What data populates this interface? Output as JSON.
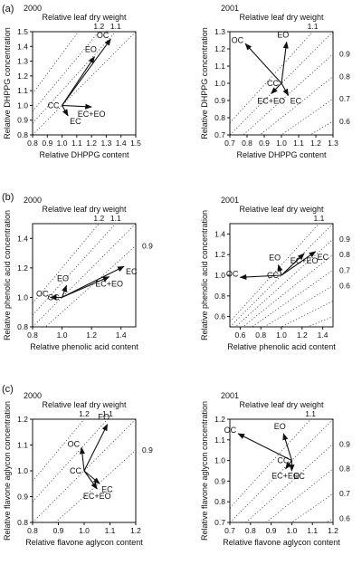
{
  "figure": {
    "type": "vector-diagram-grid",
    "row_labels": [
      "(a)",
      "(b)",
      "(c)"
    ]
  },
  "chart_data": [
    {
      "type": "vector",
      "panel_id": "a-2000",
      "year": "2000",
      "xlabel": "Relative DHPPG content",
      "ylabel": "Relative DHPPG concentration",
      "top_axis_label": "Relative leaf dry weight",
      "xlim": [
        0.8,
        1.5
      ],
      "ylim": [
        0.8,
        1.5
      ],
      "xticks": [
        "0.8",
        "0.9",
        "1.0",
        "1.1",
        "1.2",
        "1.3",
        "1.4",
        "1.5"
      ],
      "yticks": [
        "0.8",
        "0.9",
        "1.0",
        "1.1",
        "1.2",
        "1.3",
        "1.4",
        "1.5"
      ],
      "isolines": [
        {
          "label": "1.0",
          "k": 1.0
        },
        {
          "label": "1.1",
          "k": 1.1
        },
        {
          "label": "1.2",
          "k": 1.2
        },
        {
          "label": "",
          "k": 1.35
        }
      ],
      "origin_label": "CC",
      "origin": [
        1.0,
        1.0
      ],
      "vectors": [
        {
          "label": "OC",
          "x": 1.33,
          "y": 1.45
        },
        {
          "label": "EO",
          "x": 1.22,
          "y": 1.33
        },
        {
          "label": "EC+EO",
          "x": 1.2,
          "y": 0.99
        },
        {
          "label": "EC",
          "x": 1.04,
          "y": 0.93
        }
      ]
    },
    {
      "type": "vector",
      "panel_id": "a-2001",
      "year": "2001",
      "xlabel": "Relative DHPPG content",
      "ylabel": "Relative DHPPG concentration",
      "top_axis_label": "Relative leaf dry weight",
      "xlim": [
        0.7,
        1.3
      ],
      "ylim": [
        0.7,
        1.3
      ],
      "xticks": [
        "0.7",
        "0.8",
        "0.9",
        "1.0",
        "1.1",
        "1.2",
        "1.3"
      ],
      "yticks": [
        "0.7",
        "0.8",
        "0.9",
        "1.0",
        "1.1",
        "1.2",
        "1.3"
      ],
      "isolines": [
        {
          "label": "0.6",
          "k": 0.6
        },
        {
          "label": "0.7",
          "k": 0.7
        },
        {
          "label": "0.8",
          "k": 0.8
        },
        {
          "label": "0.9",
          "k": 0.9
        },
        {
          "label": "1.0",
          "k": 1.0
        },
        {
          "label": "1.1",
          "k": 1.1
        }
      ],
      "origin_label": "CC",
      "origin": [
        1.0,
        1.0
      ],
      "vectors": [
        {
          "label": "OC",
          "x": 0.79,
          "y": 1.23
        },
        {
          "label": "EO",
          "x": 1.03,
          "y": 1.24
        },
        {
          "label": "EC+EO",
          "x": 0.94,
          "y": 0.94
        },
        {
          "label": "EC",
          "x": 1.04,
          "y": 0.93
        }
      ]
    },
    {
      "type": "vector",
      "panel_id": "b-2000",
      "year": "2000",
      "xlabel": "Relative phenolic acid content",
      "ylabel": "Relative phenolic acid concentration",
      "top_axis_label": "Relative leaf dry weight",
      "xlim": [
        0.8,
        1.5
      ],
      "ylim": [
        0.8,
        1.5
      ],
      "xticks": [
        "0.8",
        "1.0",
        "1.2",
        "1.4"
      ],
      "yticks": [
        "0.8",
        "1.0",
        "1.2",
        "1.4"
      ],
      "isolines": [
        {
          "label": "0.9",
          "k": 0.9
        },
        {
          "label": "1.0",
          "k": 1.0
        },
        {
          "label": "1.1",
          "k": 1.1
        },
        {
          "label": "1.2",
          "k": 1.2
        }
      ],
      "origin_label": "CC",
      "origin": [
        1.0,
        1.0
      ],
      "vectors": [
        {
          "label": "OC",
          "x": 0.92,
          "y": 1.0
        },
        {
          "label": "EO",
          "x": 1.03,
          "y": 1.08
        },
        {
          "label": "EC",
          "x": 1.42,
          "y": 1.21
        },
        {
          "label": "EC+EO",
          "x": 1.32,
          "y": 1.14
        }
      ]
    },
    {
      "type": "vector",
      "panel_id": "b-2001",
      "year": "2001",
      "xlabel": "Relative phenolic acid content",
      "ylabel": "Relative phenolic acid concentration",
      "top_axis_label": "Relative leaf dry weight",
      "xlim": [
        0.5,
        1.5
      ],
      "ylim": [
        0.5,
        1.5
      ],
      "xticks": [
        "0.6",
        "0.8",
        "1.0",
        "1.2",
        "1.4"
      ],
      "yticks": [
        "0.6",
        "0.8",
        "1.0",
        "1.2",
        "1.4"
      ],
      "isolines": [
        {
          "label": "",
          "k": 0.4
        },
        {
          "label": "",
          "k": 0.5
        },
        {
          "label": "0.6",
          "k": 0.6
        },
        {
          "label": "0.7",
          "k": 0.7
        },
        {
          "label": "0.8",
          "k": 0.8
        },
        {
          "label": "0.9",
          "k": 0.9
        },
        {
          "label": "1.0",
          "k": 1.0
        },
        {
          "label": "1.1",
          "k": 1.1
        }
      ],
      "origin_label": "CC",
      "origin": [
        1.0,
        1.0
      ],
      "vectors": [
        {
          "label": "OC",
          "x": 0.6,
          "y": 0.98
        },
        {
          "label": "EO",
          "x": 0.97,
          "y": 1.1
        },
        {
          "label": "EC+EO",
          "x": 1.22,
          "y": 1.21
        },
        {
          "label": "EC",
          "x": 1.33,
          "y": 1.23
        }
      ]
    },
    {
      "type": "vector",
      "panel_id": "c-2000",
      "year": "2000",
      "xlabel": "Relative flavone aglycon content",
      "ylabel": "Relative flavone aglycon concentration",
      "top_axis_label": "Relative leaf dry weight",
      "xlim": [
        0.8,
        1.2
      ],
      "ylim": [
        0.8,
        1.2
      ],
      "xticks": [
        "0.8",
        "0.9",
        "1.0",
        "1.1",
        "1.2"
      ],
      "yticks": [
        "0.8",
        "0.9",
        "1.0",
        "1.1",
        "1.2"
      ],
      "isolines": [
        {
          "label": "0.9",
          "k": 0.9
        },
        {
          "label": "1.0",
          "k": 1.0
        },
        {
          "label": "1.1",
          "k": 1.1
        },
        {
          "label": "1.2",
          "k": 1.2
        }
      ],
      "origin_label": "CC",
      "origin": [
        1.0,
        1.0
      ],
      "vectors": [
        {
          "label": "OC",
          "x": 0.99,
          "y": 1.09
        },
        {
          "label": "EO",
          "x": 1.09,
          "y": 1.18
        },
        {
          "label": "EC",
          "x": 1.06,
          "y": 0.95
        },
        {
          "label": "EC+EO",
          "x": 1.05,
          "y": 0.93
        }
      ]
    },
    {
      "type": "vector",
      "panel_id": "c-2001",
      "year": "2001",
      "xlabel": "Relative flavone aglycon content",
      "ylabel": "Relative flavone aglycon concentration",
      "top_axis_label": "Relative leaf dry weight",
      "xlim": [
        0.7,
        1.2
      ],
      "ylim": [
        0.7,
        1.2
      ],
      "xticks": [
        "0.7",
        "0.8",
        "0.9",
        "1.0",
        "1.1",
        "1.2"
      ],
      "yticks": [
        "0.7",
        "0.8",
        "0.9",
        "1.0",
        "1.1",
        "1.2"
      ],
      "isolines": [
        {
          "label": "0.6",
          "k": 0.6
        },
        {
          "label": "0.7",
          "k": 0.7
        },
        {
          "label": "0.8",
          "k": 0.8
        },
        {
          "label": "0.9",
          "k": 0.9
        },
        {
          "label": "1.0",
          "k": 1.0
        },
        {
          "label": "1.1",
          "k": 1.1
        }
      ],
      "origin_label": "CC",
      "origin": [
        1.0,
        1.0
      ],
      "vectors": [
        {
          "label": "OC",
          "x": 0.74,
          "y": 1.13
        },
        {
          "label": "EO",
          "x": 0.96,
          "y": 1.13
        },
        {
          "label": "EC+EO",
          "x": 0.97,
          "y": 0.96
        },
        {
          "label": "EC",
          "x": 1.0,
          "y": 0.95
        }
      ]
    }
  ]
}
